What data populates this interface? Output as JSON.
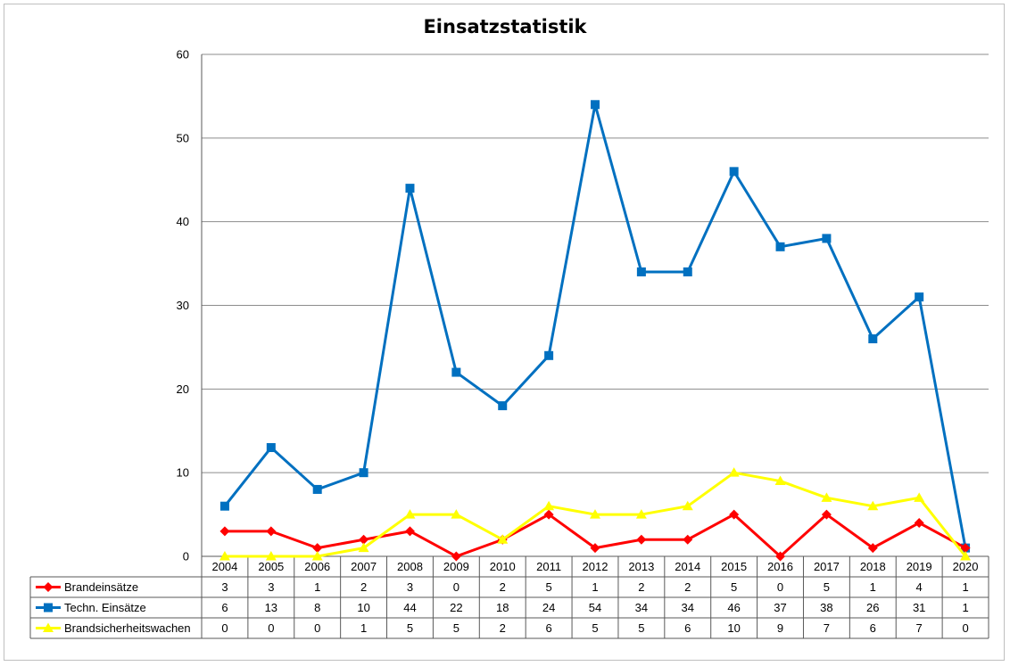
{
  "chart_data": {
    "type": "line",
    "title": "Einsatzstatistik",
    "xlabel": "",
    "ylabel": "",
    "ylim": [
      0,
      60
    ],
    "yticks": [
      0,
      10,
      20,
      30,
      40,
      50,
      60
    ],
    "grid": true,
    "legend": "data-table",
    "categories": [
      "2004",
      "2005",
      "2006",
      "2007",
      "2008",
      "2009",
      "2010",
      "2011",
      "2012",
      "2013",
      "2014",
      "2015",
      "2016",
      "2017",
      "2018",
      "2019",
      "2020"
    ],
    "series": [
      {
        "name": "Brandeinsätze",
        "color": "#ff0000",
        "marker": "diamond",
        "values": [
          3,
          3,
          1,
          2,
          3,
          0,
          2,
          5,
          1,
          2,
          2,
          5,
          0,
          5,
          1,
          4,
          1
        ]
      },
      {
        "name": "Techn. Einsätze",
        "color": "#0070c0",
        "marker": "square",
        "values": [
          6,
          13,
          8,
          10,
          44,
          22,
          18,
          24,
          54,
          34,
          34,
          46,
          37,
          38,
          26,
          31,
          1
        ]
      },
      {
        "name": "Brandsicherheitswachen",
        "color": "#ffff00",
        "marker": "triangle",
        "values": [
          0,
          0,
          0,
          1,
          5,
          5,
          2,
          6,
          5,
          5,
          6,
          10,
          9,
          7,
          6,
          7,
          0
        ]
      }
    ]
  }
}
